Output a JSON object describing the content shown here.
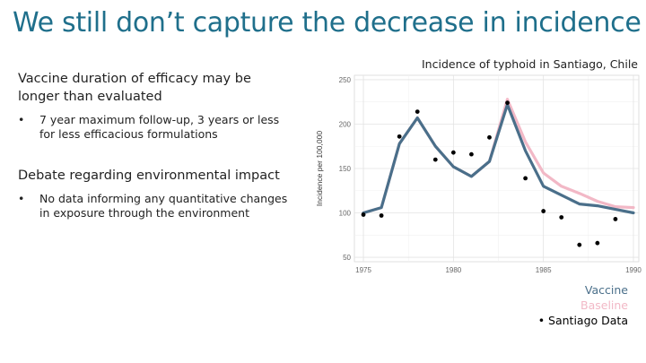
{
  "slide": {
    "title": "We still don’t capture the decrease in incidence"
  },
  "left": {
    "heading1": "Vaccine duration of efficacy may be longer than evaluated",
    "bullet1": "7 year maximum follow-up, 3 years or less for less efficacious formulations",
    "heading2": "Debate regarding environmental impact",
    "bullet2": "No data informing any quantitative changes in exposure through the environment",
    "bullet_glyph": "•"
  },
  "chart_data": {
    "type": "line",
    "title": "Incidence of typhoid in Santiago, Chile",
    "xlabel": "",
    "ylabel": "Incidence per 100,000",
    "xlim": [
      1974.5,
      1990.3
    ],
    "ylim": [
      45,
      255
    ],
    "x_ticks": [
      1975,
      1980,
      1985,
      1990
    ],
    "y_ticks": [
      50,
      100,
      150,
      200,
      250
    ],
    "grid": true,
    "legend_position": "bottom-right",
    "series": [
      {
        "name": "Vaccine",
        "color": "#4a6f8a",
        "style": "line",
        "points": [
          [
            1975,
            100
          ],
          [
            1976,
            106
          ],
          [
            1977,
            178
          ],
          [
            1978,
            207
          ],
          [
            1979,
            175
          ],
          [
            1980,
            152
          ],
          [
            1981,
            141
          ],
          [
            1982,
            158
          ],
          [
            1983,
            222
          ],
          [
            1984,
            170
          ],
          [
            1985,
            130
          ],
          [
            1986,
            120
          ],
          [
            1987,
            110
          ],
          [
            1988,
            108
          ],
          [
            1989,
            104
          ],
          [
            1990,
            100
          ]
        ]
      },
      {
        "name": "Baseline",
        "color": "#f2b8c6",
        "style": "line",
        "points": [
          [
            1975,
            100
          ],
          [
            1976,
            106
          ],
          [
            1977,
            178
          ],
          [
            1978,
            207
          ],
          [
            1979,
            175
          ],
          [
            1980,
            152
          ],
          [
            1981,
            141
          ],
          [
            1982,
            158
          ],
          [
            1983,
            228
          ],
          [
            1984,
            180
          ],
          [
            1985,
            145
          ],
          [
            1986,
            130
          ],
          [
            1987,
            122
          ],
          [
            1988,
            113
          ],
          [
            1989,
            107
          ],
          [
            1990,
            106
          ]
        ]
      },
      {
        "name": "Santiago Data",
        "color": "#000000",
        "style": "points",
        "points": [
          [
            1975,
            98
          ],
          [
            1976,
            97
          ],
          [
            1977,
            186
          ],
          [
            1978,
            214
          ],
          [
            1979,
            160
          ],
          [
            1980,
            168
          ],
          [
            1981,
            166
          ],
          [
            1982,
            185
          ],
          [
            1983,
            224
          ],
          [
            1984,
            139
          ],
          [
            1985,
            102
          ],
          [
            1986,
            95
          ],
          [
            1987,
            64
          ],
          [
            1988,
            66
          ],
          [
            1989,
            93
          ]
        ]
      }
    ]
  },
  "legend": {
    "vaccine": "Vaccine",
    "baseline": "Baseline",
    "data": "• Santiago Data"
  }
}
